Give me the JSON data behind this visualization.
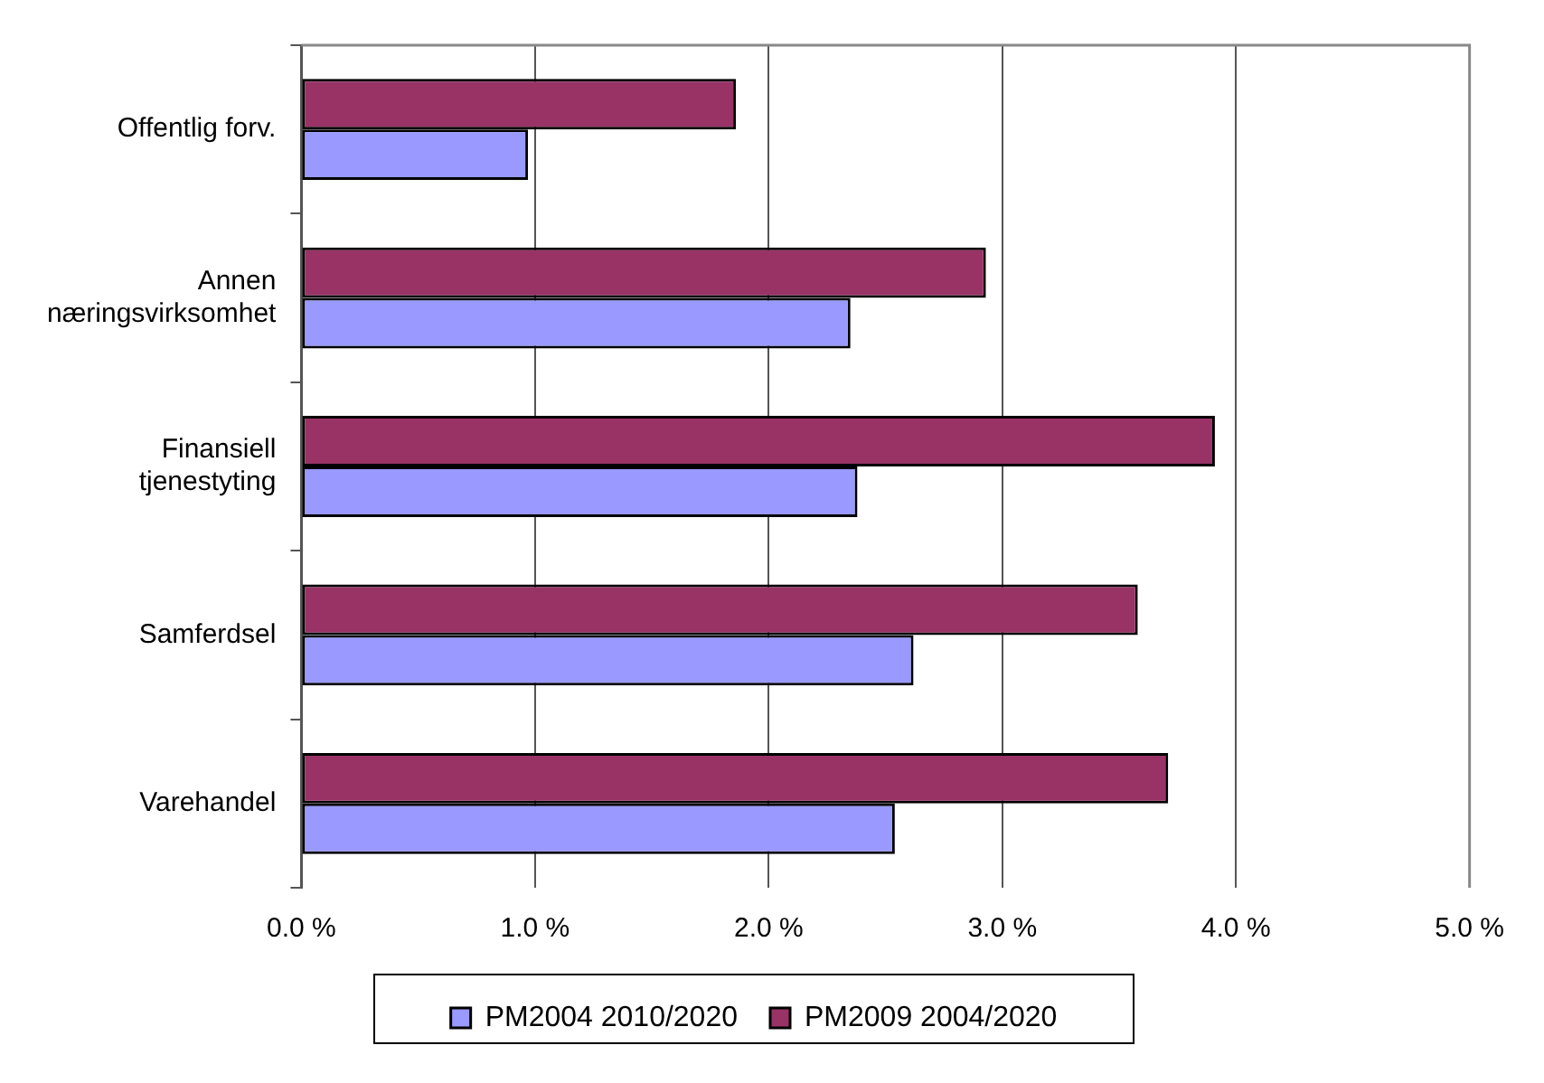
{
  "chart_data": {
    "type": "bar",
    "orientation": "horizontal",
    "categories": [
      "Offentlig forv.",
      "Annen næringsvirksomhet",
      "Finansiell tjenestyting",
      "Samferdsel",
      "Varehandel"
    ],
    "series": [
      {
        "name": "PM2004 2010/2020",
        "color": "#9999ff",
        "values": [
          0.97,
          2.35,
          2.38,
          2.62,
          2.54
        ]
      },
      {
        "name": "PM2009 2004/2020",
        "color": "#993366",
        "values": [
          1.86,
          2.93,
          3.91,
          3.58,
          3.71
        ]
      }
    ],
    "xlim": [
      0,
      5
    ],
    "xticks": [
      {
        "value": 0,
        "label": "0.0 %"
      },
      {
        "value": 1,
        "label": "1.0 %"
      },
      {
        "value": 2,
        "label": "2.0 %"
      },
      {
        "value": 3,
        "label": "3.0 %"
      },
      {
        "value": 4,
        "label": "4.0 %"
      },
      {
        "value": 5,
        "label": "5.0 %"
      }
    ],
    "grid": "x",
    "legend": "bottom"
  }
}
